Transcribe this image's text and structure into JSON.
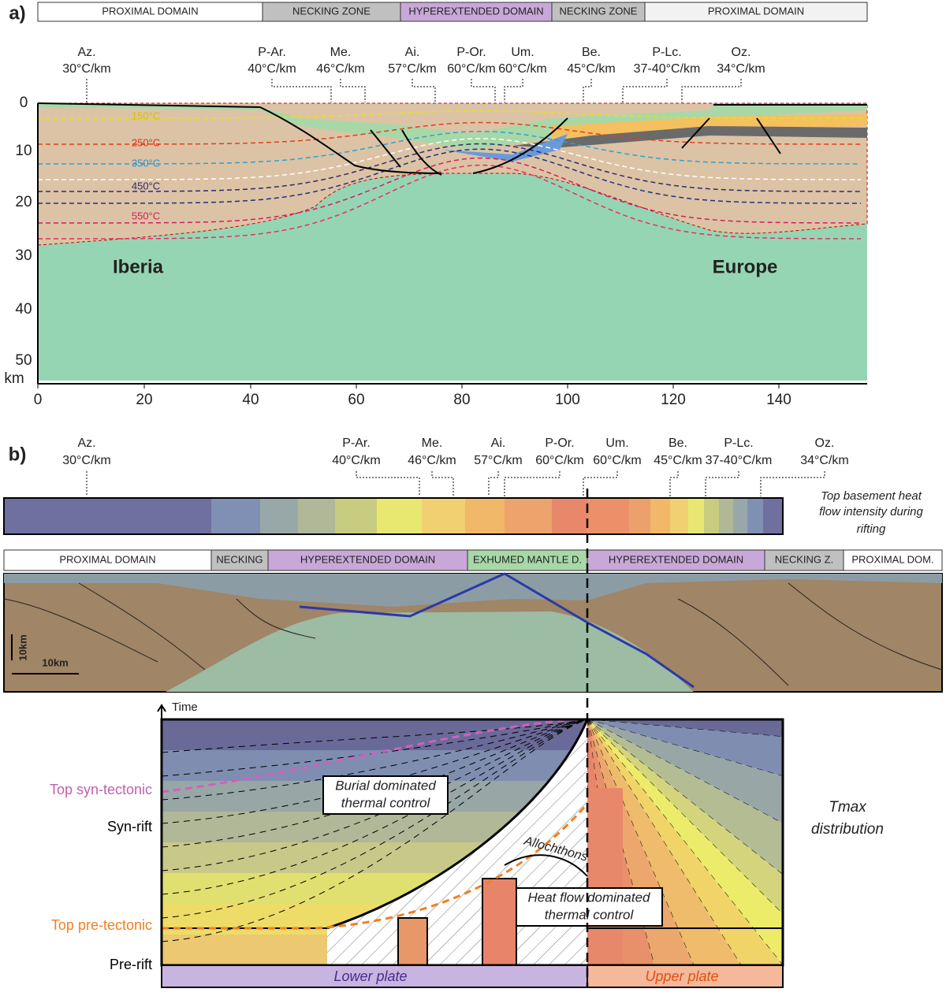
{
  "panel_a": {
    "label": "a)",
    "domains": [
      "PROXIMAL DOMAIN",
      "NECKING ZONE",
      "HYPEREXTENDED DOMAIN",
      "NECKING ZONE",
      "PROXIMAL DOMAIN"
    ],
    "wells": [
      {
        "name": "Az.",
        "gradient": "30°C/km"
      },
      {
        "name": "P-Ar.",
        "gradient": "40°C/km"
      },
      {
        "name": "Me.",
        "gradient": "46°C/km"
      },
      {
        "name": "Ai.",
        "gradient": "57°C/km"
      },
      {
        "name": "P-Or.",
        "gradient": "60°C/km"
      },
      {
        "name": "Um.",
        "gradient": "60°C/km"
      },
      {
        "name": "Be.",
        "gradient": "45°C/km"
      },
      {
        "name": "P-Lc.",
        "gradient": "37-40°C/km"
      },
      {
        "name": "Oz.",
        "gradient": "34°C/km"
      }
    ],
    "isotherms": [
      "150°C",
      "250°C",
      "350°C",
      "450°C",
      "550°C"
    ],
    "regions": [
      "Iberia",
      "Europe"
    ],
    "y_ticks": [
      "0",
      "10",
      "20",
      "30",
      "40",
      "50"
    ],
    "y_unit": "km",
    "x_ticks": [
      "0",
      "20",
      "40",
      "60",
      "80",
      "100",
      "120",
      "140"
    ]
  },
  "panel_b": {
    "label": "b)",
    "wells": [
      {
        "name": "Az.",
        "gradient": "30°C/km"
      },
      {
        "name": "P-Ar.",
        "gradient": "40°C/km"
      },
      {
        "name": "Me.",
        "gradient": "46°C/km"
      },
      {
        "name": "Ai.",
        "gradient": "57°C/km"
      },
      {
        "name": "P-Or.",
        "gradient": "60°C/km"
      },
      {
        "name": "Um.",
        "gradient": "60°C/km"
      },
      {
        "name": "Be.",
        "gradient": "45°C/km"
      },
      {
        "name": "P-Lc.",
        "gradient": "37-40°C/km"
      },
      {
        "name": "Oz.",
        "gradient": "34°C/km"
      }
    ],
    "heat_flow_caption": [
      "Top basement heat",
      "flow intensity during",
      "rifting"
    ],
    "domains": [
      "PROXIMAL DOMAIN",
      "NECKING",
      "HYPEREXTENDED DOMAIN",
      "EXHUMED MANTLE D.",
      "HYPEREXTENDED DOMAIN",
      "NECKING Z.",
      "PROXIMAL DOM."
    ],
    "scale_vertical": "10km",
    "scale_horizontal": "10km",
    "time_axis": "Time",
    "left_labels": [
      "Top syn-tectonic",
      "Syn-rift",
      "Top pre-tectonic",
      "Pre-rift"
    ],
    "burial_box": [
      "Burial dominated",
      "thermal control"
    ],
    "heat_flow_box": [
      "Heat flow dominated",
      "thermal control"
    ],
    "allochthons": "Allochthons",
    "tmax": [
      "Tmax",
      "distribution"
    ],
    "plates": [
      "Lower plate",
      "Upper plate"
    ]
  }
}
